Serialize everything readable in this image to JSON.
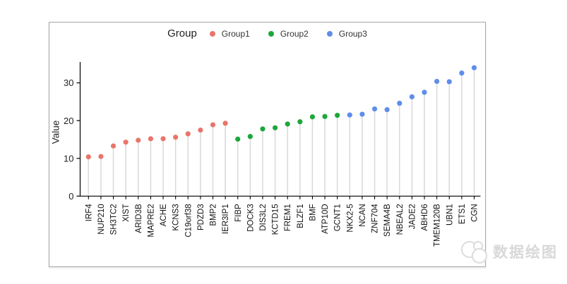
{
  "legend": {
    "title": "Group",
    "items": [
      {
        "label": "Group1",
        "color": "#E8756C"
      },
      {
        "label": "Group2",
        "color": "#1CA73B"
      },
      {
        "label": "Group3",
        "color": "#5F8DEA"
      }
    ]
  },
  "watermark": {
    "text": "数据绘图"
  },
  "chart_data": {
    "type": "scatter",
    "variant": "lollipop",
    "title": "",
    "xlabel": "",
    "ylabel": "Value",
    "legend_title": "Group",
    "legend_position": "top",
    "grid": false,
    "ylim": [
      0,
      35.5
    ],
    "yticks": [
      0,
      10,
      20,
      30
    ],
    "stem_color": "#dbdbdb",
    "group_colors": {
      "Group1": "#E8756C",
      "Group2": "#1CA73B",
      "Group3": "#5F8DEA"
    },
    "points": [
      {
        "label": "IRF4",
        "value": 10.4,
        "group": "Group1"
      },
      {
        "label": "NUP210",
        "value": 10.5,
        "group": "Group1"
      },
      {
        "label": "SH3TC2",
        "value": 13.3,
        "group": "Group1"
      },
      {
        "label": "XIST",
        "value": 14.3,
        "group": "Group1"
      },
      {
        "label": "ARID3B",
        "value": 14.8,
        "group": "Group1"
      },
      {
        "label": "MAPRE2",
        "value": 15.2,
        "group": "Group1"
      },
      {
        "label": "ACHE",
        "value": 15.2,
        "group": "Group1"
      },
      {
        "label": "KCNS3",
        "value": 15.6,
        "group": "Group1"
      },
      {
        "label": "C19orf38",
        "value": 16.5,
        "group": "Group1"
      },
      {
        "label": "PDZD3",
        "value": 17.5,
        "group": "Group1"
      },
      {
        "label": "BMP2",
        "value": 18.9,
        "group": "Group1"
      },
      {
        "label": "IER3IP1",
        "value": 19.3,
        "group": "Group1"
      },
      {
        "label": "FIBP",
        "value": 15.1,
        "group": "Group2"
      },
      {
        "label": "DOCK3",
        "value": 15.8,
        "group": "Group2"
      },
      {
        "label": "DIS3L2",
        "value": 17.8,
        "group": "Group2"
      },
      {
        "label": "KCTD15",
        "value": 18.1,
        "group": "Group2"
      },
      {
        "label": "FREM1",
        "value": 19.1,
        "group": "Group2"
      },
      {
        "label": "BLZF1",
        "value": 19.7,
        "group": "Group2"
      },
      {
        "label": "BMF",
        "value": 21.0,
        "group": "Group2"
      },
      {
        "label": "ATP10D",
        "value": 21.1,
        "group": "Group2"
      },
      {
        "label": "GCNT1",
        "value": 21.4,
        "group": "Group2"
      },
      {
        "label": "NKX2-5",
        "value": 21.5,
        "group": "Group3"
      },
      {
        "label": "NCAN",
        "value": 21.7,
        "group": "Group3"
      },
      {
        "label": "ZNF704",
        "value": 23.1,
        "group": "Group3"
      },
      {
        "label": "SEMA4B",
        "value": 22.9,
        "group": "Group3"
      },
      {
        "label": "NBEAL2",
        "value": 24.6,
        "group": "Group3"
      },
      {
        "label": "JADE2",
        "value": 26.3,
        "group": "Group3"
      },
      {
        "label": "ABHD6",
        "value": 27.5,
        "group": "Group3"
      },
      {
        "label": "TMEM120B",
        "value": 30.4,
        "group": "Group3"
      },
      {
        "label": "UBN1",
        "value": 30.3,
        "group": "Group3"
      },
      {
        "label": "ETS1",
        "value": 32.6,
        "group": "Group3"
      },
      {
        "label": "CGN",
        "value": 34.0,
        "group": "Group3"
      }
    ]
  }
}
